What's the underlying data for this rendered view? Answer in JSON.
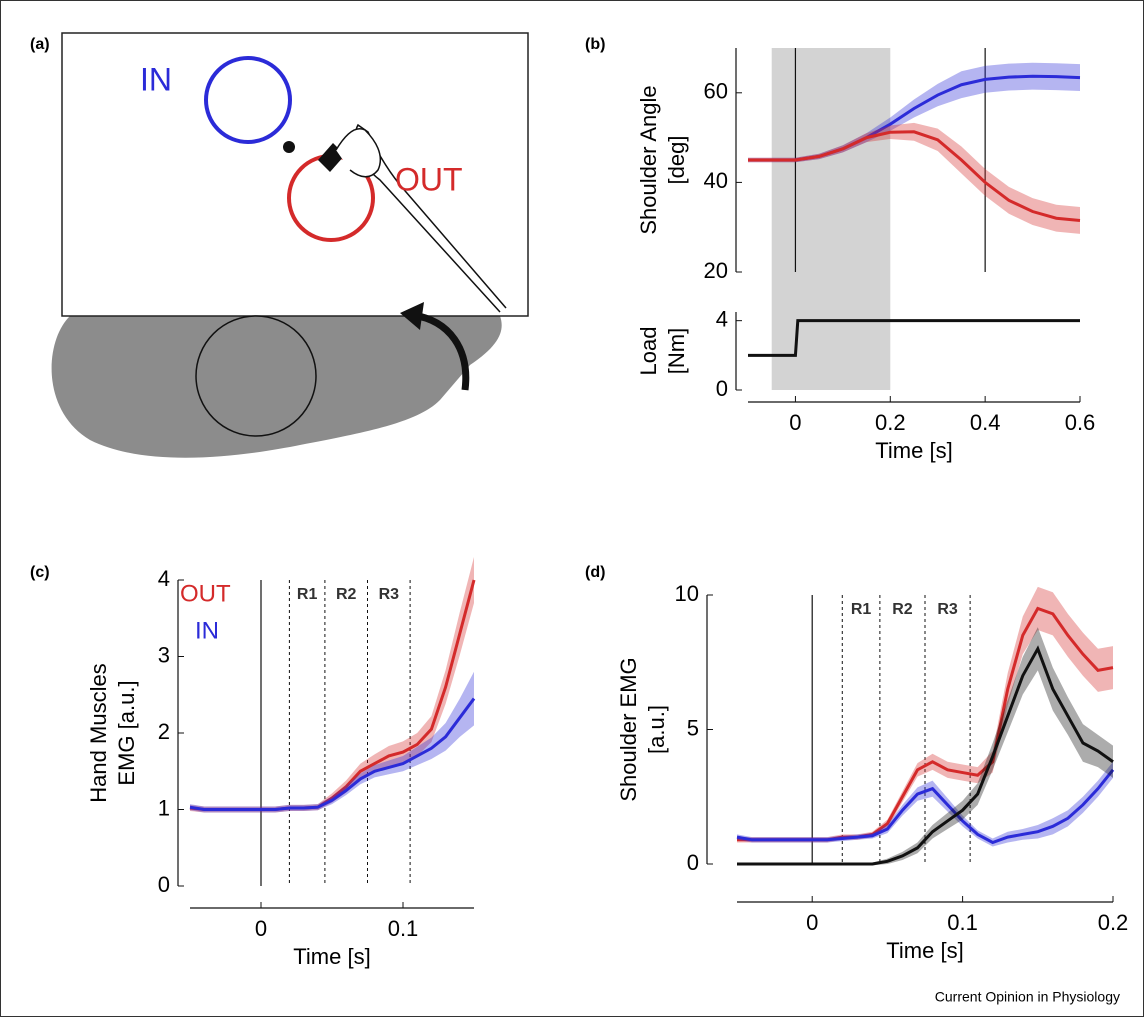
{
  "panel_a": {
    "label": "(a)",
    "targets": [
      "IN",
      "OUT"
    ]
  },
  "footer": "Current Opinion in Physiology",
  "chart_data": [
    {
      "type": "line",
      "panel": "(b)",
      "ylabel_lines": [
        "Shoulder Angle",
        "[deg]"
      ],
      "x": [
        -0.1,
        -0.05,
        0,
        0.05,
        0.1,
        0.15,
        0.2,
        0.25,
        0.3,
        0.35,
        0.4,
        0.45,
        0.5,
        0.55,
        0.6
      ],
      "xlim": [
        -0.1,
        0.6
      ],
      "ylim": [
        20,
        70
      ],
      "yticks": [
        20,
        40,
        60
      ],
      "shade": [
        -0.05,
        0.2
      ],
      "vlines": [
        0,
        0.4
      ],
      "series": [
        {
          "color": "#2b2bd8",
          "values": [
            45,
            45,
            45,
            45.8,
            47.5,
            50,
            53,
            56.5,
            59.5,
            61.8,
            63,
            63.5,
            63.7,
            63.6,
            63.4
          ],
          "error": [
            0.5,
            0.5,
            0.5,
            0.6,
            0.8,
            1,
            1.5,
            2,
            2.5,
            3,
            3,
            3,
            3,
            3,
            3
          ]
        },
        {
          "color": "#d42a2a",
          "values": [
            45,
            45,
            45,
            45.8,
            47.5,
            50,
            51.2,
            51.3,
            49.5,
            45,
            40,
            36,
            33.5,
            32,
            31.5
          ],
          "error": [
            0.5,
            0.5,
            0.5,
            0.6,
            0.8,
            1,
            1.5,
            2,
            2.5,
            3,
            3,
            3,
            3,
            3,
            3
          ]
        }
      ]
    },
    {
      "type": "line",
      "ylabel_lines": [
        "Load",
        "[Nm]"
      ],
      "xlabel": "Time [s]",
      "x": [
        -0.1,
        0,
        0.005,
        0.6
      ],
      "xlim": [
        -0.1,
        0.6
      ],
      "xticks": [
        0,
        0.2,
        0.4,
        0.6
      ],
      "ylim": [
        0,
        4.5
      ],
      "yticks": [
        0,
        4
      ],
      "series": [
        {
          "color": "#111111",
          "values": [
            2,
            2,
            4,
            4
          ]
        }
      ]
    },
    {
      "type": "line",
      "panel": "(c)",
      "ylabel_lines": [
        "Hand Muscles",
        "EMG [a.u.]"
      ],
      "xlabel": "Time [s]",
      "legend": true,
      "x": [
        -0.05,
        -0.04,
        -0.03,
        -0.02,
        -0.01,
        0,
        0.01,
        0.02,
        0.03,
        0.04,
        0.05,
        0.06,
        0.07,
        0.08,
        0.09,
        0.1,
        0.11,
        0.12,
        0.13,
        0.14,
        0.15
      ],
      "xlim": [
        -0.05,
        0.15
      ],
      "xticks": [
        0,
        0.1
      ],
      "ylim": [
        0,
        4
      ],
      "yticks": [
        0,
        1,
        2,
        3,
        4
      ],
      "vlines": [
        0
      ],
      "dashed_vlines": [
        0.02,
        0.045,
        0.075,
        0.105
      ],
      "region_labels": [
        "R1",
        "R2",
        "R3"
      ],
      "series": [
        {
          "name": "OUT",
          "color": "#d42a2a",
          "values": [
            1.02,
            1.0,
            1.0,
            1.0,
            1.0,
            1.0,
            1.0,
            1.02,
            1.02,
            1.03,
            1.15,
            1.3,
            1.5,
            1.6,
            1.7,
            1.75,
            1.85,
            2.05,
            2.6,
            3.3,
            4.0
          ],
          "error": [
            0.04,
            0.04,
            0.04,
            0.04,
            0.04,
            0.04,
            0.04,
            0.04,
            0.04,
            0.04,
            0.06,
            0.08,
            0.1,
            0.12,
            0.13,
            0.14,
            0.15,
            0.17,
            0.22,
            0.28,
            0.3
          ]
        },
        {
          "name": "IN",
          "color": "#2b2bd8",
          "values": [
            1.03,
            1.0,
            1.0,
            1.0,
            1.0,
            1.0,
            1.0,
            1.02,
            1.02,
            1.03,
            1.12,
            1.25,
            1.4,
            1.5,
            1.55,
            1.6,
            1.7,
            1.8,
            1.95,
            2.2,
            2.45
          ],
          "error": [
            0.04,
            0.04,
            0.04,
            0.04,
            0.04,
            0.04,
            0.04,
            0.04,
            0.04,
            0.04,
            0.05,
            0.06,
            0.07,
            0.08,
            0.09,
            0.1,
            0.12,
            0.14,
            0.18,
            0.25,
            0.35
          ]
        }
      ]
    },
    {
      "type": "line",
      "panel": "(d)",
      "ylabel_lines": [
        "Shoulder EMG",
        "[a.u.]"
      ],
      "xlabel": "Time [s]",
      "x": [
        -0.05,
        -0.04,
        -0.03,
        -0.02,
        -0.01,
        0,
        0.01,
        0.02,
        0.03,
        0.04,
        0.05,
        0.06,
        0.07,
        0.08,
        0.09,
        0.1,
        0.11,
        0.12,
        0.13,
        0.14,
        0.15,
        0.16,
        0.17,
        0.18,
        0.19,
        0.2
      ],
      "xlim": [
        -0.05,
        0.2
      ],
      "xticks": [
        0,
        0.1,
        0.2
      ],
      "ylim": [
        0,
        10
      ],
      "yticks": [
        0,
        5,
        10
      ],
      "vlines": [
        0
      ],
      "dashed_vlines": [
        0.02,
        0.045,
        0.075,
        0.105
      ],
      "region_labels": [
        "R1",
        "R2",
        "R3"
      ],
      "series": [
        {
          "color": "#d42a2a",
          "values": [
            0.9,
            0.9,
            0.9,
            0.9,
            0.9,
            0.9,
            0.9,
            1.0,
            1.0,
            1.1,
            1.5,
            2.5,
            3.5,
            3.8,
            3.5,
            3.4,
            3.3,
            3.8,
            6.5,
            8.5,
            9.5,
            9.3,
            8.5,
            7.8,
            7.2,
            7.3
          ],
          "error": [
            0.1,
            0.1,
            0.1,
            0.1,
            0.1,
            0.1,
            0.1,
            0.1,
            0.1,
            0.1,
            0.15,
            0.2,
            0.25,
            0.3,
            0.3,
            0.3,
            0.3,
            0.4,
            0.6,
            0.7,
            0.8,
            0.8,
            0.8,
            0.8,
            0.8,
            0.8
          ]
        },
        {
          "color": "#2b2bd8",
          "values": [
            1.0,
            0.9,
            0.9,
            0.9,
            0.9,
            0.9,
            0.9,
            0.95,
            1.0,
            1.05,
            1.3,
            2.0,
            2.6,
            2.8,
            2.2,
            1.6,
            1.1,
            0.8,
            1.0,
            1.1,
            1.2,
            1.4,
            1.7,
            2.2,
            2.8,
            3.5
          ],
          "error": [
            0.1,
            0.1,
            0.1,
            0.1,
            0.1,
            0.1,
            0.1,
            0.1,
            0.1,
            0.1,
            0.15,
            0.2,
            0.25,
            0.3,
            0.25,
            0.2,
            0.15,
            0.15,
            0.2,
            0.2,
            0.25,
            0.3,
            0.3,
            0.3,
            0.3,
            0.3
          ]
        },
        {
          "color": "#111111",
          "values": [
            0,
            0,
            0,
            0,
            0,
            0,
            0,
            0,
            0,
            0,
            0.1,
            0.3,
            0.6,
            1.2,
            1.6,
            2.0,
            2.6,
            4.0,
            5.5,
            7.0,
            8.0,
            6.5,
            5.5,
            4.5,
            4.2,
            3.8
          ],
          "error": [
            0.05,
            0.05,
            0.05,
            0.05,
            0.05,
            0.05,
            0.05,
            0.05,
            0.05,
            0.05,
            0.1,
            0.15,
            0.2,
            0.25,
            0.3,
            0.35,
            0.4,
            0.5,
            0.6,
            0.7,
            0.8,
            0.8,
            0.7,
            0.7,
            0.6,
            0.6
          ]
        }
      ]
    }
  ]
}
